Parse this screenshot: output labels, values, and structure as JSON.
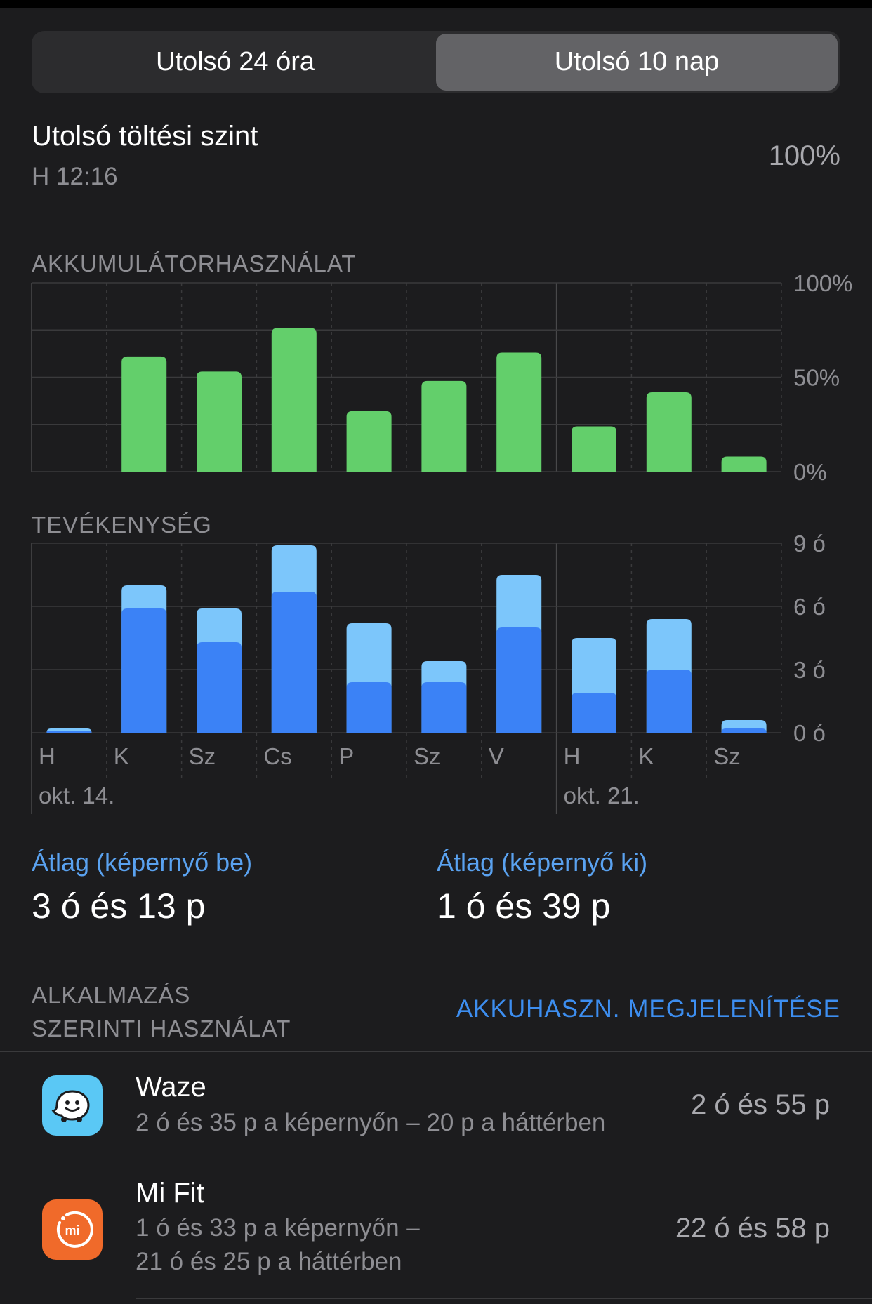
{
  "segments": [
    "Utolsó 24 óra",
    "Utolsó 10 nap"
  ],
  "last_charge": {
    "title": "Utolsó töltési szint",
    "time": "H 12:16",
    "value": "100%"
  },
  "battery_section_label": "AKKUMULÁTORHASZNÁLAT",
  "activity_section_label": "TEVÉKENYSÉG",
  "chart_data": [
    {
      "type": "bar",
      "title": "AKKUMULÁTORHASZNÁLAT",
      "categories": [
        "H",
        "K",
        "Sz",
        "Cs",
        "P",
        "Sz",
        "V",
        "H",
        "K",
        "Sz"
      ],
      "values": [
        0,
        61,
        53,
        76,
        32,
        48,
        63,
        24,
        42,
        8
      ],
      "ylim": [
        0,
        100
      ],
      "y_ticks": [
        "100%",
        "50%",
        "0%"
      ],
      "color": "#63cf6b",
      "grid": true
    },
    {
      "type": "bar",
      "title": "TEVÉKENYSÉG",
      "categories": [
        "H",
        "K",
        "Sz",
        "Cs",
        "P",
        "Sz",
        "V",
        "H",
        "K",
        "Sz"
      ],
      "series": [
        {
          "values": [
            0.1,
            5.9,
            4.3,
            6.7,
            2.4,
            2.4,
            5.0,
            1.9,
            3.0,
            0.2
          ],
          "color": "#3b82f6"
        },
        {
          "values": [
            0.1,
            1.1,
            1.6,
            2.2,
            2.8,
            1.0,
            2.5,
            2.6,
            2.4,
            0.4
          ],
          "color": "#7cc6fb"
        }
      ],
      "stacked": true,
      "ylim": [
        0,
        9
      ],
      "y_ticks": [
        "9 ó",
        "6 ó",
        "3 ó",
        "0 ó"
      ],
      "date_labels": [
        {
          "category_index": 0,
          "text": "okt. 14."
        },
        {
          "category_index": 7,
          "text": "okt. 21."
        }
      ],
      "grid": true
    }
  ],
  "averages": {
    "screen_on_label": "Átlag (képernyő be)",
    "screen_on_value": "3 ó és 13 p",
    "screen_off_label": "Átlag (képernyő ki)",
    "screen_off_value": "1 ó és 39 p"
  },
  "apps_section": {
    "title_line1": "ALKALMAZÁS",
    "title_line2": "SZERINTI HASZNÁLAT",
    "toggle_link": "AKKUHASZN. MEGJELENÍTÉSE"
  },
  "apps": [
    {
      "name": "Waze",
      "detail_line1": "2 ó és 35 p a képernyőn – 20 p a háttérben",
      "detail_line2": "",
      "total": "2 ó és 55 p",
      "icon": "waze-icon",
      "icon_color": "#5ac8f5"
    },
    {
      "name": "Mi Fit",
      "detail_line1": "1 ó és 33 p a képernyőn –",
      "detail_line2": "21 ó és 25 p a háttérben",
      "total": "22 ó és 58 p",
      "icon": "mi-fit-icon",
      "icon_color": "#f06a2a",
      "icon_text": "mi"
    }
  ]
}
